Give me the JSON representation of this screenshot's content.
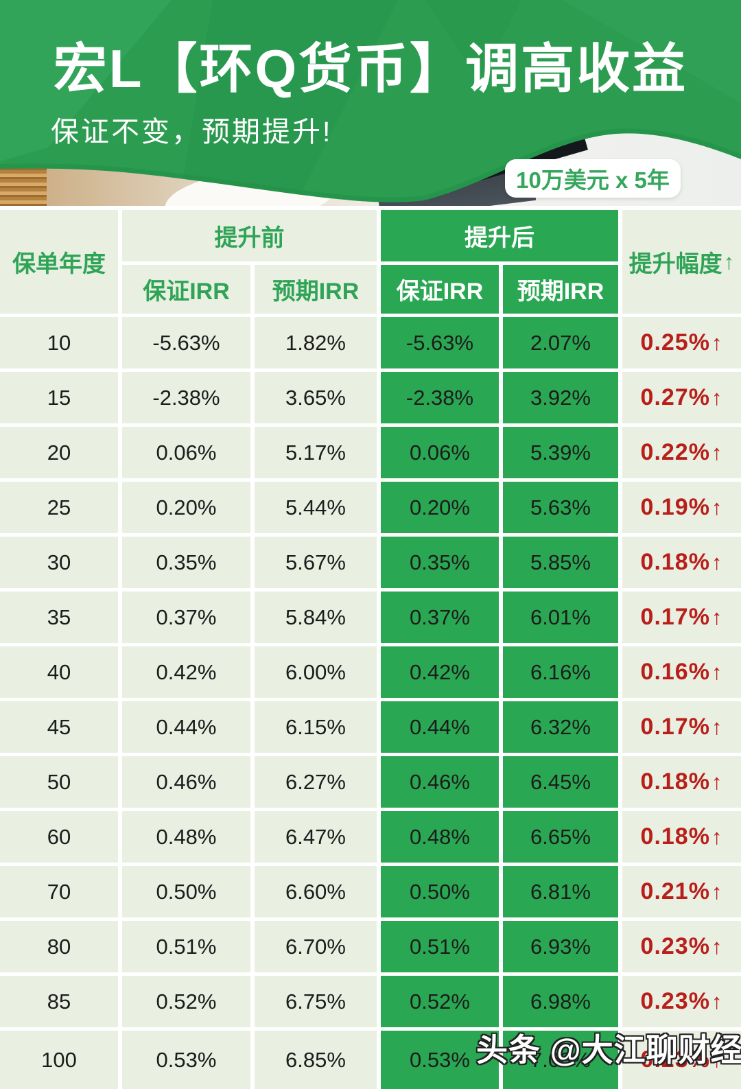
{
  "header": {
    "title": "宏L【环Q货币】调高收益",
    "subtitle": "保证不变，预期提升!",
    "badge": "10万美元 x 5年"
  },
  "table": {
    "headers": {
      "policy_year": "保单年度",
      "before": "提升前",
      "after": "提升后",
      "uplift": "提升幅度",
      "arrow": "↑",
      "guaranteed": "保证IRR",
      "expected": "预期IRR"
    }
  },
  "chart_data": {
    "type": "table",
    "title": "宏L【环Q货币】调高收益",
    "subtitle": "10万美元 x 5年",
    "columns": [
      "保单年度",
      "提升前 保证IRR",
      "提升前 预期IRR",
      "提升后 保证IRR",
      "提升后 预期IRR",
      "提升幅度"
    ],
    "rows": [
      [
        "10",
        "-5.63%",
        "1.82%",
        "-5.63%",
        "2.07%",
        "0.25%"
      ],
      [
        "15",
        "-2.38%",
        "3.65%",
        "-2.38%",
        "3.92%",
        "0.27%"
      ],
      [
        "20",
        "0.06%",
        "5.17%",
        "0.06%",
        "5.39%",
        "0.22%"
      ],
      [
        "25",
        "0.20%",
        "5.44%",
        "0.20%",
        "5.63%",
        "0.19%"
      ],
      [
        "30",
        "0.35%",
        "5.67%",
        "0.35%",
        "5.85%",
        "0.18%"
      ],
      [
        "35",
        "0.37%",
        "5.84%",
        "0.37%",
        "6.01%",
        "0.17%"
      ],
      [
        "40",
        "0.42%",
        "6.00%",
        "0.42%",
        "6.16%",
        "0.16%"
      ],
      [
        "45",
        "0.44%",
        "6.15%",
        "0.44%",
        "6.32%",
        "0.17%"
      ],
      [
        "50",
        "0.46%",
        "6.27%",
        "0.46%",
        "6.45%",
        "0.18%"
      ],
      [
        "60",
        "0.48%",
        "6.47%",
        "0.48%",
        "6.65%",
        "0.18%"
      ],
      [
        "70",
        "0.50%",
        "6.60%",
        "0.50%",
        "6.81%",
        "0.21%"
      ],
      [
        "80",
        "0.51%",
        "6.70%",
        "0.51%",
        "6.93%",
        "0.23%"
      ],
      [
        "85",
        "0.52%",
        "6.75%",
        "0.52%",
        "6.98%",
        "0.23%"
      ],
      [
        "100",
        "0.53%",
        "6.85%",
        "0.53%",
        "7.08%",
        "0.23%"
      ]
    ]
  },
  "watermark": "头条 @大江聊财经",
  "colors": {
    "banner_green": "#2b9c50",
    "table_green": "#2aa753",
    "cell_light": "#e9efe1",
    "green_text": "#2fa457",
    "uplift_red": "#b81e1a",
    "badge_text_green": "#35a75c"
  }
}
